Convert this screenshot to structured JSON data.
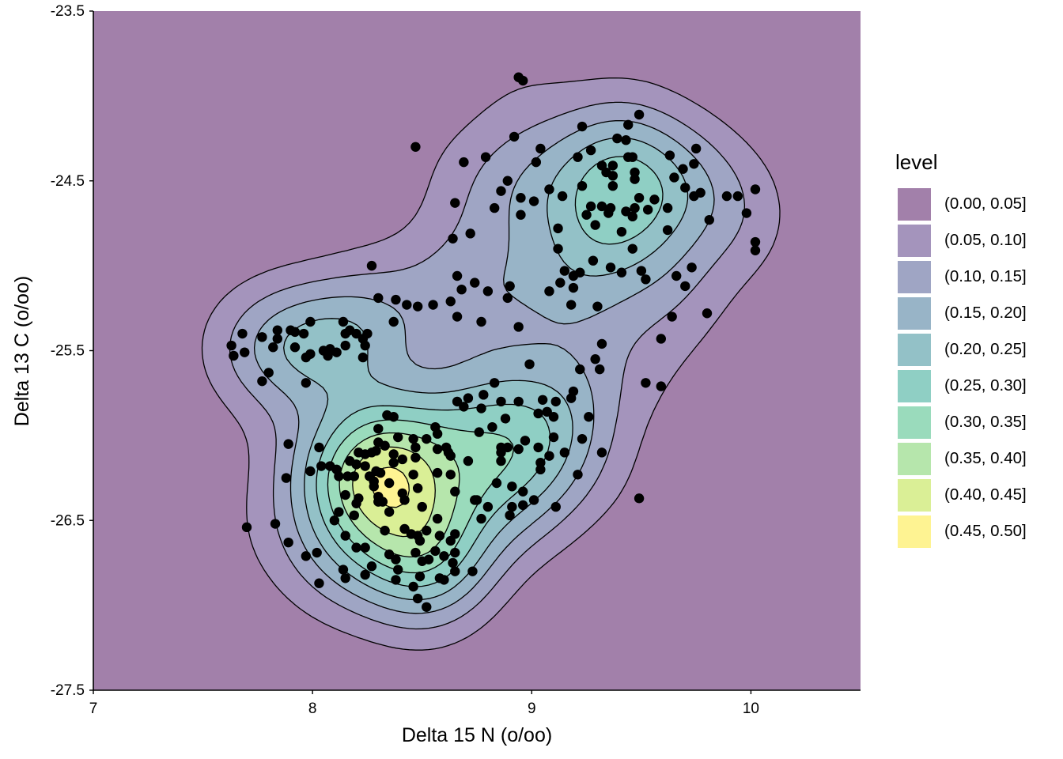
{
  "chart_data": {
    "type": "density2d_filled",
    "xlabel": "Delta 15 N (o/oo)",
    "ylabel": "Delta 13 C (o/oo)",
    "xlim": [
      7,
      10.5
    ],
    "ylim": [
      -27.5,
      -23.5
    ],
    "xticks": [
      7,
      8,
      9,
      10
    ],
    "xtick_labels": [
      "7",
      "8",
      "9",
      "10"
    ],
    "yticks": [
      -23.5,
      -24.5,
      -25.5,
      -26.5,
      -27.5
    ],
    "ytick_labels": [
      "-23.5",
      "-24.5",
      "-25.5",
      "-26.5",
      "-27.5"
    ],
    "grid": false,
    "legend": {
      "title": "level",
      "placement": "right",
      "labels": [
        "(0.00, 0.05]",
        "(0.05, 0.10]",
        "(0.10, 0.15]",
        "(0.15, 0.20]",
        "(0.20, 0.25]",
        "(0.25, 0.30]",
        "(0.30, 0.35]",
        "(0.35, 0.40]",
        "(0.40, 0.45]",
        "(0.45, 0.50]"
      ]
    },
    "level_breaks": [
      0,
      0.05,
      0.1,
      0.15,
      0.2,
      0.25,
      0.3,
      0.35,
      0.4,
      0.45,
      0.5
    ],
    "level_colors": [
      "#440154",
      "#482878",
      "#3E4A89",
      "#31688E",
      "#26828E",
      "#1F9E89",
      "#35B779",
      "#6DCD59",
      "#B4DE2C",
      "#FDE725"
    ],
    "fill_alpha": 0.5,
    "point_color": "#000000",
    "points": [
      [
        8.3,
        -25.19
      ],
      [
        8.38,
        -25.2
      ],
      [
        8.43,
        -25.23
      ],
      [
        8.37,
        -25.33
      ],
      [
        7.99,
        -25.33
      ],
      [
        8.14,
        -25.33
      ],
      [
        7.68,
        -25.4
      ],
      [
        7.77,
        -25.42
      ],
      [
        7.84,
        -25.38
      ],
      [
        7.84,
        -25.43
      ],
      [
        7.82,
        -25.48
      ],
      [
        7.9,
        -25.38
      ],
      [
        7.92,
        -25.39
      ],
      [
        7.96,
        -25.4
      ],
      [
        7.92,
        -25.48
      ],
      [
        7.63,
        -25.47
      ],
      [
        7.64,
        -25.53
      ],
      [
        7.69,
        -25.51
      ],
      [
        7.99,
        -25.52
      ],
      [
        7.97,
        -25.54
      ],
      [
        8.05,
        -25.5
      ],
      [
        8.08,
        -25.49
      ],
      [
        8.07,
        -25.53
      ],
      [
        8.11,
        -25.51
      ],
      [
        8.15,
        -25.47
      ],
      [
        8.15,
        -25.4
      ],
      [
        8.17,
        -25.38
      ],
      [
        8.2,
        -25.4
      ],
      [
        8.23,
        -25.43
      ],
      [
        8.25,
        -25.4
      ],
      [
        8.24,
        -25.47
      ],
      [
        8.23,
        -25.54
      ],
      [
        7.8,
        -25.63
      ],
      [
        7.77,
        -25.68
      ],
      [
        7.97,
        -25.69
      ],
      [
        8.34,
        -25.88
      ],
      [
        8.37,
        -25.89
      ],
      [
        8.3,
        -25.96
      ],
      [
        8.56,
        -25.95
      ],
      [
        8.57,
        -25.99
      ],
      [
        8.39,
        -26.01
      ],
      [
        8.46,
        -26.02
      ],
      [
        8.52,
        -26.02
      ],
      [
        8.3,
        -26.04
      ],
      [
        8.33,
        -26.06
      ],
      [
        8.47,
        -26.07
      ],
      [
        8.57,
        -26.08
      ],
      [
        8.61,
        -26.07
      ],
      [
        8.62,
        -26.1
      ],
      [
        8.71,
        -26.15
      ],
      [
        7.89,
        -26.05
      ],
      [
        8.03,
        -26.07
      ],
      [
        7.99,
        -26.21
      ],
      [
        8.04,
        -26.18
      ],
      [
        8.08,
        -26.18
      ],
      [
        8.11,
        -26.2
      ],
      [
        8.12,
        -26.24
      ],
      [
        8.16,
        -26.24
      ],
      [
        8.17,
        -26.15
      ],
      [
        8.21,
        -26.1
      ],
      [
        8.24,
        -26.11
      ],
      [
        8.27,
        -26.1
      ],
      [
        8.29,
        -26.09
      ],
      [
        8.37,
        -26.11
      ],
      [
        8.41,
        -26.14
      ],
      [
        8.47,
        -26.13
      ],
      [
        8.2,
        -26.17
      ],
      [
        8.24,
        -26.18
      ],
      [
        8.37,
        -26.16
      ],
      [
        8.29,
        -26.21
      ],
      [
        8.31,
        -26.22
      ],
      [
        8.26,
        -26.24
      ],
      [
        8.28,
        -26.27
      ],
      [
        8.28,
        -26.3
      ],
      [
        8.35,
        -26.28
      ],
      [
        8.46,
        -26.23
      ],
      [
        8.57,
        -26.22
      ],
      [
        8.63,
        -26.23
      ],
      [
        8.19,
        -26.24
      ],
      [
        8.15,
        -26.35
      ],
      [
        8.21,
        -26.37
      ],
      [
        8.2,
        -26.4
      ],
      [
        8.3,
        -26.36
      ],
      [
        8.32,
        -26.39
      ],
      [
        8.3,
        -26.39
      ],
      [
        8.41,
        -26.34
      ],
      [
        8.42,
        -26.38
      ],
      [
        8.48,
        -26.31
      ],
      [
        8.5,
        -26.42
      ],
      [
        8.35,
        -26.45
      ],
      [
        8.12,
        -26.45
      ],
      [
        8.1,
        -26.5
      ],
      [
        8.19,
        -26.47
      ],
      [
        7.88,
        -26.25
      ],
      [
        8.65,
        -26.33
      ],
      [
        8.74,
        -26.38
      ],
      [
        8.57,
        -26.49
      ],
      [
        8.33,
        -26.56
      ],
      [
        8.42,
        -26.55
      ],
      [
        8.45,
        -26.58
      ],
      [
        8.48,
        -26.59
      ],
      [
        8.52,
        -26.56
      ],
      [
        8.49,
        -26.62
      ],
      [
        8.58,
        -26.59
      ],
      [
        8.63,
        -26.62
      ],
      [
        8.65,
        -26.58
      ],
      [
        8.15,
        -26.59
      ],
      [
        8.2,
        -26.66
      ],
      [
        8.24,
        -26.66
      ],
      [
        8.35,
        -26.7
      ],
      [
        8.38,
        -26.73
      ],
      [
        8.47,
        -26.69
      ],
      [
        8.56,
        -26.68
      ],
      [
        8.6,
        -26.71
      ],
      [
        8.65,
        -26.69
      ],
      [
        8.64,
        -26.75
      ],
      [
        8.65,
        -26.8
      ],
      [
        8.5,
        -26.74
      ],
      [
        8.53,
        -26.73
      ],
      [
        8.39,
        -26.79
      ],
      [
        8.27,
        -26.77
      ],
      [
        8.24,
        -26.82
      ],
      [
        8.14,
        -26.79
      ],
      [
        8.15,
        -26.84
      ],
      [
        8.38,
        -26.85
      ],
      [
        8.46,
        -26.89
      ],
      [
        8.49,
        -26.83
      ],
      [
        8.58,
        -26.84
      ],
      [
        8.6,
        -26.85
      ],
      [
        8.73,
        -26.8
      ],
      [
        7.83,
        -26.52
      ],
      [
        7.89,
        -26.63
      ],
      [
        7.97,
        -26.71
      ],
      [
        8.02,
        -26.69
      ],
      [
        8.03,
        -26.87
      ],
      [
        8.48,
        -26.96
      ],
      [
        8.52,
        -27.01
      ],
      [
        8.99,
        -25.58
      ],
      [
        9.29,
        -25.55
      ],
      [
        9.31,
        -25.61
      ],
      [
        9.22,
        -25.61
      ],
      [
        8.83,
        -25.69
      ],
      [
        8.78,
        -25.76
      ],
      [
        8.71,
        -25.78
      ],
      [
        8.66,
        -25.8
      ],
      [
        8.69,
        -25.83
      ],
      [
        8.77,
        -25.84
      ],
      [
        8.86,
        -25.8
      ],
      [
        8.94,
        -25.8
      ],
      [
        9.05,
        -25.79
      ],
      [
        9.11,
        -25.8
      ],
      [
        9.19,
        -25.74
      ],
      [
        9.18,
        -25.78
      ],
      [
        9.03,
        -25.87
      ],
      [
        9.07,
        -25.86
      ],
      [
        9.1,
        -25.89
      ],
      [
        8.88,
        -25.9
      ],
      [
        8.82,
        -25.95
      ],
      [
        8.76,
        -25.98
      ],
      [
        9.26,
        -25.89
      ],
      [
        9.23,
        -26.02
      ],
      [
        9.1,
        -26.01
      ],
      [
        8.97,
        -26.03
      ],
      [
        8.94,
        -26.08
      ],
      [
        8.89,
        -26.07
      ],
      [
        8.86,
        -26.07
      ],
      [
        8.86,
        -26.1
      ],
      [
        8.86,
        -26.15
      ],
      [
        9.03,
        -26.07
      ],
      [
        9.15,
        -26.1
      ],
      [
        9.08,
        -26.12
      ],
      [
        9.04,
        -26.16
      ],
      [
        9.04,
        -26.2
      ],
      [
        9.32,
        -26.1
      ],
      [
        9.21,
        -26.23
      ],
      [
        8.84,
        -26.28
      ],
      [
        8.91,
        -26.3
      ],
      [
        8.96,
        -26.33
      ],
      [
        9.01,
        -26.38
      ],
      [
        8.96,
        -26.41
      ],
      [
        8.91,
        -26.42
      ],
      [
        8.9,
        -26.47
      ],
      [
        8.8,
        -26.42
      ],
      [
        8.75,
        -26.38
      ],
      [
        9.11,
        -26.42
      ],
      [
        8.63,
        -26.12
      ],
      [
        8.77,
        -26.49
      ],
      [
        9.49,
        -24.11
      ],
      [
        9.23,
        -24.18
      ],
      [
        9.44,
        -24.17
      ],
      [
        8.92,
        -24.24
      ],
      [
        9.04,
        -24.31
      ],
      [
        9.02,
        -24.39
      ],
      [
        9.39,
        -24.25
      ],
      [
        9.43,
        -24.26
      ],
      [
        9.27,
        -24.32
      ],
      [
        9.21,
        -24.36
      ],
      [
        9.44,
        -24.36
      ],
      [
        9.46,
        -24.36
      ],
      [
        9.63,
        -24.35
      ],
      [
        9.75,
        -24.31
      ],
      [
        9.69,
        -24.43
      ],
      [
        9.74,
        -24.4
      ],
      [
        9.32,
        -24.41
      ],
      [
        9.37,
        -24.41
      ],
      [
        9.34,
        -24.45
      ],
      [
        9.37,
        -24.47
      ],
      [
        9.47,
        -24.45
      ],
      [
        9.47,
        -24.49
      ],
      [
        9.65,
        -24.48
      ],
      [
        8.89,
        -24.5
      ],
      [
        9.08,
        -24.55
      ],
      [
        9.14,
        -24.59
      ],
      [
        9.23,
        -24.53
      ],
      [
        9.37,
        -24.53
      ],
      [
        9.7,
        -24.54
      ],
      [
        9.77,
        -24.57
      ],
      [
        9.74,
        -24.59
      ],
      [
        9.89,
        -24.59
      ],
      [
        9.94,
        -24.59
      ],
      [
        10.02,
        -24.55
      ],
      [
        8.95,
        -24.6
      ],
      [
        9.01,
        -24.62
      ],
      [
        9.27,
        -24.65
      ],
      [
        9.32,
        -24.65
      ],
      [
        9.36,
        -24.66
      ],
      [
        9.35,
        -24.69
      ],
      [
        9.43,
        -24.68
      ],
      [
        9.47,
        -24.66
      ],
      [
        9.46,
        -24.71
      ],
      [
        9.49,
        -24.6
      ],
      [
        9.56,
        -24.61
      ],
      [
        9.53,
        -24.67
      ],
      [
        9.62,
        -24.66
      ],
      [
        9.25,
        -24.7
      ],
      [
        9.29,
        -24.76
      ],
      [
        9.98,
        -24.69
      ],
      [
        9.81,
        -24.73
      ],
      [
        8.95,
        -24.7
      ],
      [
        9.12,
        -24.78
      ],
      [
        9.41,
        -24.8
      ],
      [
        9.62,
        -24.79
      ],
      [
        9.12,
        -24.9
      ],
      [
        9.46,
        -24.9
      ],
      [
        9.28,
        -24.97
      ],
      [
        9.36,
        -25.01
      ],
      [
        9.41,
        -25.04
      ],
      [
        9.5,
        -25.03
      ],
      [
        9.52,
        -25.08
      ],
      [
        9.15,
        -25.03
      ],
      [
        9.19,
        -25.06
      ],
      [
        9.22,
        -25.04
      ],
      [
        9.13,
        -25.1
      ],
      [
        9.19,
        -25.13
      ],
      [
        9.08,
        -25.15
      ],
      [
        9.66,
        -25.06
      ],
      [
        9.73,
        -25.01
      ],
      [
        9.7,
        -25.12
      ],
      [
        10.02,
        -24.86
      ],
      [
        10.02,
        -24.91
      ],
      [
        8.9,
        -25.12
      ],
      [
        8.89,
        -25.19
      ],
      [
        9.18,
        -25.23
      ],
      [
        9.3,
        -25.24
      ],
      [
        8.94,
        -25.36
      ],
      [
        9.64,
        -25.3
      ],
      [
        9.8,
        -25.28
      ],
      [
        8.47,
        -24.3
      ],
      [
        8.69,
        -24.39
      ],
      [
        8.79,
        -24.36
      ],
      [
        8.86,
        -24.56
      ],
      [
        8.83,
        -24.66
      ],
      [
        8.65,
        -24.63
      ],
      [
        8.72,
        -24.81
      ],
      [
        8.64,
        -24.84
      ],
      [
        8.27,
        -25.0
      ],
      [
        8.66,
        -25.06
      ],
      [
        8.74,
        -25.1
      ],
      [
        8.68,
        -25.14
      ],
      [
        8.8,
        -25.15
      ],
      [
        8.9,
        -25.12
      ],
      [
        8.48,
        -25.24
      ],
      [
        8.55,
        -25.23
      ],
      [
        8.63,
        -25.21
      ],
      [
        8.66,
        -25.3
      ],
      [
        8.77,
        -25.33
      ],
      [
        8.94,
        -23.89
      ],
      [
        8.96,
        -23.91
      ],
      [
        7.7,
        -26.54
      ],
      [
        9.49,
        -26.37
      ],
      [
        9.59,
        -25.71
      ],
      [
        9.52,
        -25.69
      ],
      [
        9.59,
        -25.43
      ],
      [
        9.32,
        -25.46
      ]
    ]
  }
}
